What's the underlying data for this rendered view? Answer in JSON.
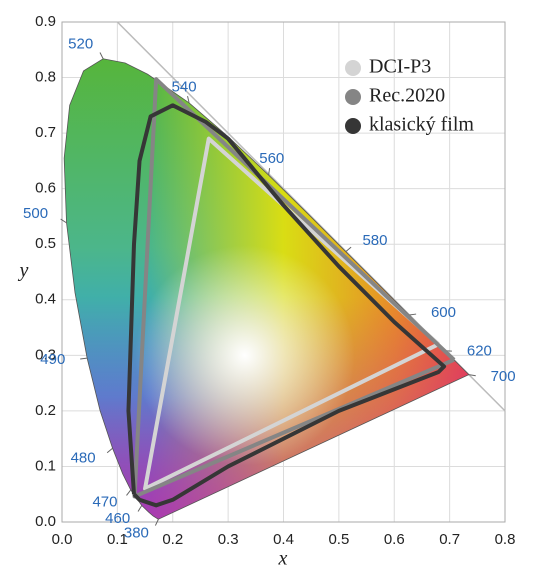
{
  "chart_data": {
    "type": "line",
    "xlabel": "x",
    "ylabel": "y",
    "xlim": [
      0,
      0.8
    ],
    "ylim": [
      0,
      0.9
    ],
    "xticks": [
      {
        "value": 0,
        "label": "0.0"
      },
      0.1,
      0.2,
      0.3,
      0.4,
      0.5,
      0.6,
      0.7,
      0.8
    ],
    "yticks": [
      {
        "value": 0,
        "label": "0.0"
      },
      0.1,
      0.2,
      0.3,
      0.4,
      0.5,
      0.6,
      0.7,
      0.8,
      0.9
    ],
    "grid": true,
    "legend": "upper right",
    "locus": {
      "x": [
        0.1741,
        0.1644,
        0.1566,
        0.144,
        0.1241,
        0.1096,
        0.0913,
        0.0687,
        0.0454,
        0.0235,
        0.0082,
        0.0039,
        0.0139,
        0.0389,
        0.0743,
        0.1142,
        0.1547,
        0.2296,
        0.3016,
        0.3731,
        0.4441,
        0.5125,
        0.5752,
        0.627,
        0.6658,
        0.6915,
        0.7347
      ],
      "y": [
        0.005,
        0.0109,
        0.0177,
        0.0297,
        0.0578,
        0.0868,
        0.1327,
        0.2007,
        0.295,
        0.4127,
        0.5384,
        0.6548,
        0.7502,
        0.812,
        0.8338,
        0.8262,
        0.8059,
        0.7543,
        0.6923,
        0.6245,
        0.5547,
        0.4866,
        0.4242,
        0.3725,
        0.334,
        0.3083,
        0.2653
      ]
    },
    "wavelength_labels": [
      {
        "text": "380",
        "x": 0.1741,
        "y": 0.005
      },
      {
        "text": "460",
        "x": 0.144,
        "y": 0.0297
      },
      {
        "text": "470",
        "x": 0.1241,
        "y": 0.0578
      },
      {
        "text": "480",
        "x": 0.0913,
        "y": 0.1327
      },
      {
        "text": "490",
        "x": 0.0454,
        "y": 0.295
      },
      {
        "text": "500",
        "x": 0.0082,
        "y": 0.5384
      },
      {
        "text": "520",
        "x": 0.0743,
        "y": 0.8338
      },
      {
        "text": "540",
        "x": 0.2296,
        "y": 0.7543
      },
      {
        "text": "560",
        "x": 0.3731,
        "y": 0.6245
      },
      {
        "text": "580",
        "x": 0.5125,
        "y": 0.4866
      },
      {
        "text": "600",
        "x": 0.627,
        "y": 0.3725
      },
      {
        "text": "620",
        "x": 0.6915,
        "y": 0.3083
      },
      {
        "text": "700",
        "x": 0.7347,
        "y": 0.2653
      }
    ],
    "series": [
      {
        "name": "DCI-P3",
        "color": "#d4d4d4",
        "x": [
          0.68,
          0.265,
          0.15,
          0.68
        ],
        "values": [
          0.32,
          0.69,
          0.06,
          0.32
        ]
      },
      {
        "name": "Rec.2020",
        "color": "#858585",
        "x": [
          0.708,
          0.17,
          0.131,
          0.708
        ],
        "values": [
          0.292,
          0.797,
          0.046,
          0.292
        ]
      },
      {
        "name": "klasický film",
        "color": "#363636",
        "x": [
          0.13,
          0.12,
          0.125,
          0.13,
          0.14,
          0.16,
          0.2,
          0.26,
          0.3,
          0.4,
          0.5,
          0.6,
          0.69,
          0.68,
          0.5,
          0.3,
          0.2,
          0.17,
          0.14,
          0.13
        ],
        "values": [
          0.05,
          0.2,
          0.35,
          0.5,
          0.65,
          0.73,
          0.75,
          0.72,
          0.69,
          0.57,
          0.46,
          0.36,
          0.28,
          0.27,
          0.2,
          0.1,
          0.04,
          0.03,
          0.04,
          0.05
        ]
      }
    ]
  }
}
